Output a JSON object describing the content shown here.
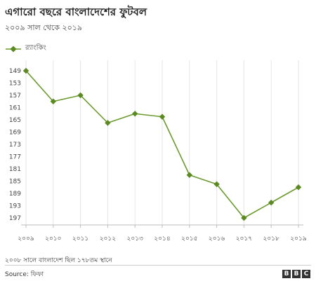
{
  "header": {
    "title": "এগারো বছরে বাংলাদেশের ফুটবল",
    "subtitle": "২০০৯ সাল থেকে ২০১৯"
  },
  "footer": {
    "note": "২০০৮ সালে বাংলাদেশ ছিল ১৭৮তম স্থানে",
    "source": "Source: ফিফা",
    "logo": [
      "B",
      "B",
      "C"
    ]
  },
  "colors": {
    "series": "#6b9a2e",
    "marker": "#5c8a22",
    "grid": "#e6e6e6",
    "axis": "#bbbbbb"
  },
  "chart_data": {
    "type": "line",
    "categories": [
      "২০০৯",
      "২০১০",
      "২০১১",
      "২০১২",
      "২০১৩",
      "২০১৪",
      "২০১৫",
      "২০১৬",
      "২০১৭",
      "২০১৮",
      "২০১৯"
    ],
    "series": [
      {
        "name": "র‍্যাংকিং",
        "values": [
          149,
          159,
          157,
          166,
          163,
          164,
          183,
          186,
          197,
          192,
          187
        ]
      }
    ],
    "y_ticks": [
      149,
      153,
      157,
      161,
      165,
      169,
      173,
      177,
      181,
      185,
      189,
      193,
      197
    ],
    "y_tick_labels": [
      "149",
      "153",
      "157",
      "161",
      "165",
      "169",
      "173",
      "177",
      "181",
      "185",
      "189",
      "193",
      "197"
    ],
    "y_inverted": true,
    "ylim": [
      149,
      197
    ],
    "grid": "vertical",
    "legend": "top-left",
    "marker": "diamond"
  }
}
